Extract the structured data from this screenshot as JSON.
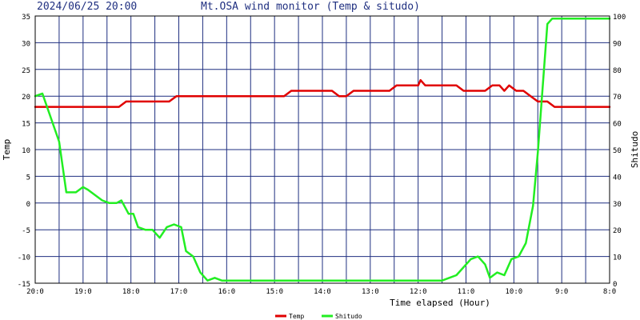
{
  "header": {
    "timestamp": "2024/06/25 20:00",
    "title": "Mt.OSA wind monitor (Temp & situdo)"
  },
  "chart_data": {
    "type": "line",
    "xlabel": "Time elapsed (Hour)",
    "ylabel_left": "Temp",
    "ylabel_right": "Shitudo",
    "xlim": [
      20,
      8
    ],
    "ylim_left": [
      -15,
      35
    ],
    "ylim_right": [
      0,
      100
    ],
    "x_ticks": [
      {
        "v": 20,
        "label": "20:0"
      },
      {
        "v": 19,
        "label": "19:0"
      },
      {
        "v": 18,
        "label": "18:0"
      },
      {
        "v": 17,
        "label": "17:0"
      },
      {
        "v": 16,
        "label": "16:0"
      },
      {
        "v": 15,
        "label": "15:0"
      },
      {
        "v": 14,
        "label": "14:0"
      },
      {
        "v": 13,
        "label": "13:0"
      },
      {
        "v": 12,
        "label": "12:0"
      },
      {
        "v": 11,
        "label": "11:0"
      },
      {
        "v": 10,
        "label": "10:0"
      },
      {
        "v": 9,
        "label": "9:0"
      },
      {
        "v": 8,
        "label": "8:0"
      }
    ],
    "x_grid_lines": [
      19.5,
      18.5,
      17.5,
      16.5,
      15.5,
      14.5,
      13.5,
      12.5,
      11.5,
      10.5,
      9.5,
      8.5
    ],
    "y_ticks_left": [
      35,
      30,
      25,
      20,
      15,
      10,
      5,
      0,
      -5,
      -10,
      -15
    ],
    "y_ticks_right": [
      100,
      90,
      80,
      70,
      60,
      50,
      40,
      30,
      20,
      10,
      0
    ],
    "grid": true,
    "legend_position": "bottom-center",
    "series": [
      {
        "name": "Temp",
        "axis": "left",
        "color": "#e00000",
        "points": [
          [
            20.0,
            18
          ],
          [
            19.0,
            18
          ],
          [
            18.25,
            18
          ],
          [
            18.1,
            19
          ],
          [
            17.5,
            19
          ],
          [
            17.2,
            19
          ],
          [
            17.05,
            20
          ],
          [
            16.0,
            20
          ],
          [
            15.0,
            20
          ],
          [
            14.8,
            20
          ],
          [
            14.65,
            21
          ],
          [
            13.8,
            21
          ],
          [
            13.65,
            20
          ],
          [
            13.5,
            20
          ],
          [
            13.35,
            21
          ],
          [
            12.6,
            21
          ],
          [
            12.45,
            22
          ],
          [
            12.0,
            22
          ],
          [
            11.95,
            23
          ],
          [
            11.85,
            22
          ],
          [
            11.2,
            22
          ],
          [
            11.05,
            21
          ],
          [
            10.6,
            21
          ],
          [
            10.45,
            22
          ],
          [
            10.3,
            22
          ],
          [
            10.2,
            21
          ],
          [
            10.1,
            22
          ],
          [
            9.95,
            21
          ],
          [
            9.8,
            21
          ],
          [
            9.65,
            20
          ],
          [
            9.5,
            19
          ],
          [
            9.3,
            19
          ],
          [
            9.15,
            18
          ],
          [
            8.0,
            18
          ]
        ]
      },
      {
        "name": "Shitudo",
        "axis": "right",
        "color": "#22ee22",
        "points": [
          [
            20.0,
            70
          ],
          [
            19.85,
            71
          ],
          [
            19.5,
            53
          ],
          [
            19.35,
            34
          ],
          [
            19.15,
            34
          ],
          [
            19.0,
            36
          ],
          [
            18.9,
            35
          ],
          [
            18.6,
            31
          ],
          [
            18.45,
            30
          ],
          [
            18.3,
            30
          ],
          [
            18.2,
            31
          ],
          [
            18.05,
            26
          ],
          [
            17.95,
            26
          ],
          [
            17.85,
            21
          ],
          [
            17.7,
            20
          ],
          [
            17.55,
            20
          ],
          [
            17.4,
            17
          ],
          [
            17.25,
            21
          ],
          [
            17.1,
            22
          ],
          [
            16.95,
            21
          ],
          [
            16.85,
            12
          ],
          [
            16.7,
            10
          ],
          [
            16.55,
            4
          ],
          [
            16.4,
            1
          ],
          [
            16.25,
            2
          ],
          [
            16.1,
            1
          ],
          [
            15.0,
            1
          ],
          [
            14.0,
            1
          ],
          [
            13.0,
            1
          ],
          [
            12.0,
            1
          ],
          [
            11.5,
            1
          ],
          [
            11.35,
            2
          ],
          [
            11.2,
            3
          ],
          [
            11.05,
            6
          ],
          [
            10.9,
            9
          ],
          [
            10.75,
            10
          ],
          [
            10.6,
            7
          ],
          [
            10.5,
            2
          ],
          [
            10.35,
            4
          ],
          [
            10.2,
            3
          ],
          [
            10.05,
            9
          ],
          [
            9.9,
            10
          ],
          [
            9.75,
            15
          ],
          [
            9.6,
            29
          ],
          [
            9.5,
            49
          ],
          [
            9.3,
            97
          ],
          [
            9.2,
            99
          ],
          [
            8.0,
            99
          ]
        ]
      }
    ]
  }
}
